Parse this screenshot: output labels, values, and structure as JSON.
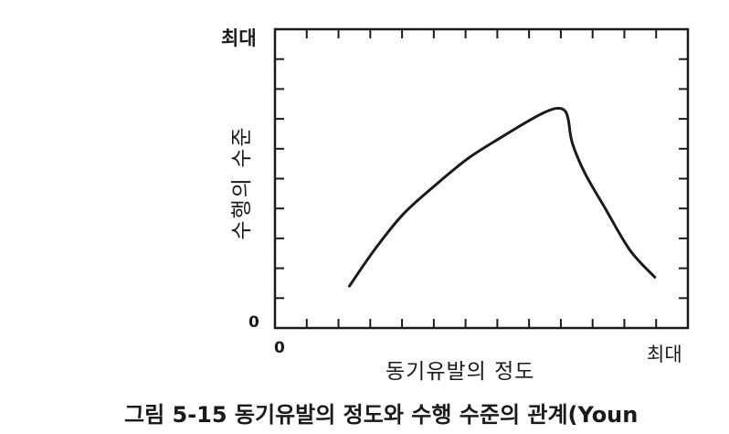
{
  "chart_data": {
    "type": "line",
    "xlabel": "동기유발의 정도",
    "ylabel": "수행의 수준",
    "xlim_labels": [
      "0",
      "최대"
    ],
    "ylim_labels": [
      "0",
      "최대"
    ],
    "grid": false,
    "x": [
      0.18,
      0.24,
      0.31,
      0.39,
      0.47,
      0.55,
      0.61,
      0.65,
      0.68,
      0.7,
      0.71,
      0.72,
      0.75,
      0.8,
      0.86,
      0.92
    ],
    "y": [
      0.14,
      0.26,
      0.38,
      0.48,
      0.57,
      0.64,
      0.69,
      0.72,
      0.735,
      0.73,
      0.7,
      0.62,
      0.52,
      0.4,
      0.26,
      0.17
    ],
    "caption": "그림 5-15 동기유발의 정도와 수행 수준의 관계(Youn"
  }
}
